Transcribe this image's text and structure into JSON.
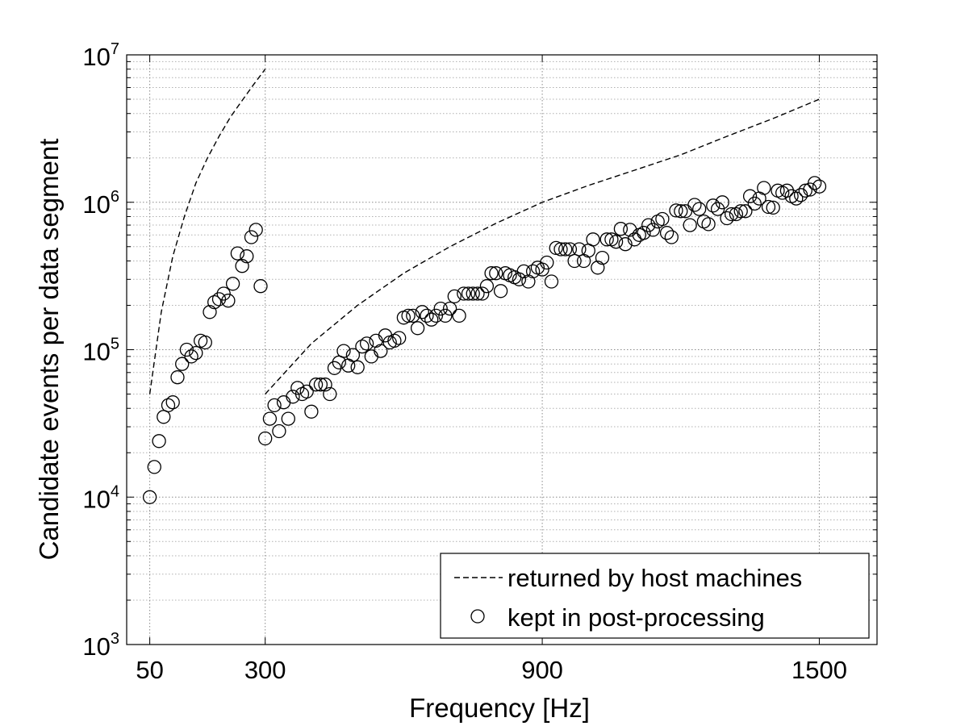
{
  "chart_data": {
    "type": "scatter",
    "title": "",
    "xlabel": "Frequency [Hz]",
    "ylabel": "Candidate events per data segment",
    "xlim": [
      0,
      1625
    ],
    "ylim": [
      1000,
      10000000
    ],
    "yscale": "log",
    "grid": true,
    "legend_position": "bottom-right",
    "x_ticks": [
      {
        "value": 50,
        "label": "50"
      },
      {
        "value": 300,
        "label": "300"
      },
      {
        "value": 900,
        "label": "900"
      },
      {
        "value": 1500,
        "label": "1500"
      }
    ],
    "y_ticks": [
      {
        "value": 1000,
        "base": "10",
        "exp": "3"
      },
      {
        "value": 10000,
        "base": "10",
        "exp": "4"
      },
      {
        "value": 100000,
        "base": "10",
        "exp": "5"
      },
      {
        "value": 1000000,
        "base": "10",
        "exp": "6"
      },
      {
        "value": 10000000,
        "base": "10",
        "exp": "7"
      }
    ],
    "series": [
      {
        "name": "returned by host machines",
        "style": "dashed-line",
        "segments": [
          {
            "x": [
              50,
              75,
              100,
              125,
              150,
              175,
              200,
              225,
              250,
              275,
              300
            ],
            "y": [
              50000,
              180000,
              430000,
              800000,
              1350000,
              2000000,
              2800000,
              3800000,
              4900000,
              6300000,
              8000000
            ]
          },
          {
            "x": [
              300,
              400,
              500,
              600,
              700,
              800,
              900,
              1000,
              1100,
              1200,
              1300,
              1400,
              1500
            ],
            "y": [
              50000,
              110000,
              200000,
              330000,
              500000,
              720000,
              1000000,
              1300000,
              1650000,
              2100000,
              2800000,
              3700000,
              5000000
            ]
          }
        ]
      },
      {
        "name": "kept in post-processing",
        "style": "open-circle",
        "x": [
          50,
          60,
          70,
          80,
          90,
          100,
          110,
          120,
          130,
          140,
          150,
          160,
          170,
          180,
          190,
          200,
          210,
          220,
          230,
          240,
          250,
          260,
          270,
          280,
          290,
          300,
          310,
          320,
          330,
          340,
          350,
          360,
          370,
          380,
          390,
          400,
          410,
          420,
          430,
          440,
          450,
          460,
          470,
          480,
          490,
          500,
          510,
          520,
          530,
          540,
          550,
          560,
          570,
          580,
          590,
          600,
          610,
          620,
          630,
          640,
          650,
          660,
          670,
          680,
          690,
          700,
          710,
          720,
          730,
          740,
          750,
          760,
          770,
          780,
          790,
          800,
          810,
          820,
          830,
          840,
          850,
          860,
          870,
          880,
          890,
          900,
          910,
          920,
          930,
          940,
          950,
          960,
          970,
          980,
          990,
          1000,
          1010,
          1020,
          1030,
          1040,
          1050,
          1060,
          1070,
          1080,
          1090,
          1100,
          1110,
          1120,
          1130,
          1140,
          1150,
          1160,
          1170,
          1180,
          1190,
          1200,
          1210,
          1220,
          1230,
          1240,
          1250,
          1260,
          1270,
          1280,
          1290,
          1300,
          1310,
          1320,
          1330,
          1340,
          1350,
          1360,
          1370,
          1380,
          1390,
          1400,
          1410,
          1420,
          1430,
          1440,
          1450,
          1460,
          1470,
          1480,
          1490,
          1500
        ],
        "y": [
          10000,
          16000,
          24000,
          35000,
          42000,
          44000,
          65000,
          80000,
          100000,
          90000,
          95000,
          115000,
          112000,
          180000,
          210000,
          220000,
          240000,
          215000,
          280000,
          450000,
          370000,
          430000,
          580000,
          650000,
          270000,
          25000,
          34000,
          42000,
          28000,
          44000,
          34000,
          48000,
          55000,
          50000,
          52000,
          38000,
          58000,
          58000,
          58000,
          50000,
          75000,
          82000,
          98000,
          78000,
          92000,
          76000,
          105000,
          110000,
          90000,
          115000,
          98000,
          125000,
          112000,
          115000,
          120000,
          165000,
          170000,
          170000,
          140000,
          180000,
          170000,
          160000,
          170000,
          190000,
          170000,
          190000,
          230000,
          170000,
          240000,
          240000,
          240000,
          240000,
          240000,
          270000,
          330000,
          330000,
          250000,
          330000,
          320000,
          310000,
          300000,
          340000,
          290000,
          340000,
          360000,
          350000,
          390000,
          290000,
          490000,
          480000,
          480000,
          480000,
          400000,
          480000,
          400000,
          470000,
          560000,
          360000,
          420000,
          560000,
          560000,
          540000,
          660000,
          520000,
          650000,
          560000,
          600000,
          620000,
          700000,
          650000,
          740000,
          770000,
          620000,
          580000,
          880000,
          870000,
          870000,
          700000,
          960000,
          900000,
          740000,
          710000,
          950000,
          900000,
          1000000,
          780000,
          830000,
          830000,
          870000,
          870000,
          1100000,
          980000,
          1060000,
          1250000,
          930000,
          920000,
          1200000,
          1160000,
          1200000,
          1100000,
          1060000,
          1120000,
          1200000,
          1220000,
          1350000,
          1280000
        ]
      }
    ]
  }
}
